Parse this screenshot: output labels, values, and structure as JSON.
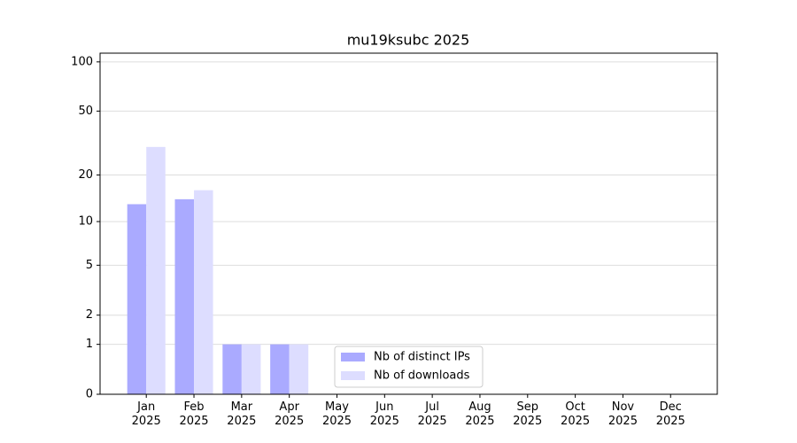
{
  "chart_data": {
    "type": "bar",
    "title": "mu19ksubc 2025",
    "categories": [
      "Jan\n2025",
      "Feb\n2025",
      "Mar\n2025",
      "Apr\n2025",
      "May\n2025",
      "Jun\n2025",
      "Jul\n2025",
      "Aug\n2025",
      "Sep\n2025",
      "Oct\n2025",
      "Nov\n2025",
      "Dec\n2025"
    ],
    "series": [
      {
        "name": "Nb of distinct IPs",
        "color": "#aaaaff",
        "values": [
          13,
          14,
          1,
          1,
          0,
          0,
          0,
          0,
          0,
          0,
          0,
          0
        ]
      },
      {
        "name": "Nb of downloads",
        "color": "#ddddff",
        "values": [
          30,
          16,
          1,
          1,
          0,
          0,
          0,
          0,
          0,
          0,
          0,
          0
        ]
      }
    ],
    "yscale": "log1p",
    "ylim": [
      0,
      113
    ],
    "yticks": [
      0,
      1,
      2,
      5,
      10,
      20,
      50,
      100
    ],
    "grid": true,
    "legend": "lower center"
  }
}
